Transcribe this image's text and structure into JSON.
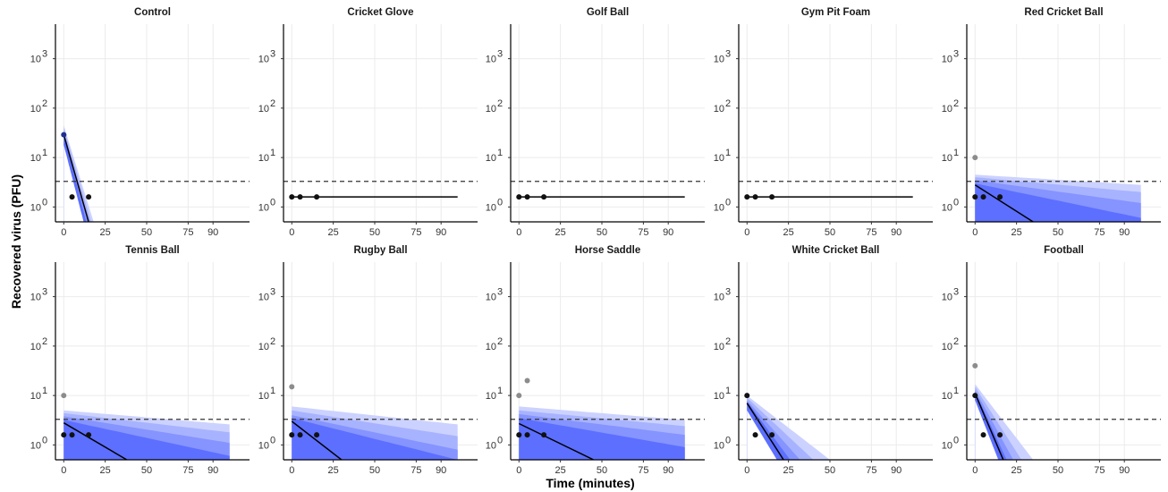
{
  "chart_data": {
    "type": "scatter",
    "layout": "facet-grid 2x5",
    "xlabel": "Time (minutes)",
    "ylabel": "Recovered virus (PFU)",
    "x_ticks": [
      0,
      25,
      50,
      75,
      90
    ],
    "y_ticks": [
      {
        "value": 1,
        "base": "10",
        "exp": "0"
      },
      {
        "value": 10,
        "base": "10",
        "exp": "1"
      },
      {
        "value": 100,
        "base": "10",
        "exp": "2"
      },
      {
        "value": 1000,
        "base": "10",
        "exp": "3"
      }
    ],
    "xlim": [
      -5,
      112
    ],
    "ylim": [
      0.5,
      5000
    ],
    "y_scale": "log10",
    "detection_limit": 3.3,
    "colors": {
      "band_outer": "#ccd2ff",
      "band_mid": "#a8b3ff",
      "band_inner": "#8594ff",
      "band_core": "#5c6fff",
      "point_main": "#111111",
      "point_secondary": "#8c8c8c",
      "point_control": "#1f2f8f"
    },
    "panels": [
      {
        "title": "Control",
        "curve_x_end": 15,
        "fit": [
          [
            0,
            29
          ],
          [
            15,
            0.5
          ]
        ],
        "bands": [
          [
            [
              0,
              45
            ],
            [
              18,
              0.5
            ]
          ],
          [
            [
              0,
              40
            ],
            [
              16.5,
              0.5
            ]
          ],
          [
            [
              0,
              34
            ],
            [
              15,
              0.5
            ]
          ],
          [
            [
              0,
              31
            ],
            [
              13.5,
              0.5
            ]
          ]
        ],
        "bands_lower": [
          [
            0,
            18
          ],
          [
            12,
            0.5
          ]
        ],
        "points": [
          {
            "x": 0,
            "y": 29,
            "kind": "control"
          },
          {
            "x": 5,
            "y": 1.6,
            "kind": "main"
          },
          {
            "x": 15,
            "y": 1.6,
            "kind": "main"
          }
        ]
      },
      {
        "title": "Cricket Glove",
        "curve_x_end": 100,
        "fit": [
          [
            0,
            1.6
          ],
          [
            100,
            1.6
          ]
        ],
        "bands": [],
        "points": [
          {
            "x": 0,
            "y": 1.6,
            "kind": "main"
          },
          {
            "x": 5,
            "y": 1.6,
            "kind": "main"
          },
          {
            "x": 15,
            "y": 1.6,
            "kind": "main"
          }
        ]
      },
      {
        "title": "Golf Ball",
        "curve_x_end": 100,
        "fit": [
          [
            0,
            1.6
          ],
          [
            100,
            1.6
          ]
        ],
        "bands": [],
        "points": [
          {
            "x": 0,
            "y": 1.6,
            "kind": "main"
          },
          {
            "x": 5,
            "y": 1.6,
            "kind": "main"
          },
          {
            "x": 15,
            "y": 1.6,
            "kind": "main"
          }
        ]
      },
      {
        "title": "Gym Pit Foam",
        "curve_x_end": 100,
        "fit": [
          [
            0,
            1.6
          ],
          [
            100,
            1.6
          ]
        ],
        "bands": [],
        "points": [
          {
            "x": 0,
            "y": 1.6,
            "kind": "main"
          },
          {
            "x": 5,
            "y": 1.6,
            "kind": "main"
          },
          {
            "x": 15,
            "y": 1.6,
            "kind": "main"
          }
        ]
      },
      {
        "title": "Red Cricket Ball",
        "curve_x_end": 100,
        "fit": [
          [
            0,
            2.8
          ],
          [
            35,
            0.5
          ]
        ],
        "bands": [
          [
            [
              0,
              4.5
            ],
            [
              100,
              2.8
            ]
          ],
          [
            [
              0,
              4.0
            ],
            [
              100,
              2.0
            ]
          ],
          [
            [
              0,
              3.5
            ],
            [
              100,
              1.2
            ]
          ],
          [
            [
              0,
              3.0
            ],
            [
              100,
              0.6
            ]
          ]
        ],
        "points": [
          {
            "x": 0,
            "y": 10,
            "kind": "secondary"
          },
          {
            "x": 0,
            "y": 1.6,
            "kind": "main"
          },
          {
            "x": 5,
            "y": 1.6,
            "kind": "main"
          },
          {
            "x": 15,
            "y": 1.6,
            "kind": "main"
          }
        ]
      },
      {
        "title": "Tennis Ball",
        "curve_x_end": 100,
        "fit": [
          [
            0,
            2.8
          ],
          [
            38,
            0.5
          ]
        ],
        "bands": [
          [
            [
              0,
              5.0
            ],
            [
              100,
              2.6
            ]
          ],
          [
            [
              0,
              4.4
            ],
            [
              100,
              1.8
            ]
          ],
          [
            [
              0,
              3.8
            ],
            [
              100,
              1.1
            ]
          ],
          [
            [
              0,
              3.2
            ],
            [
              100,
              0.6
            ]
          ]
        ],
        "points": [
          {
            "x": 0,
            "y": 10,
            "kind": "secondary"
          },
          {
            "x": 0,
            "y": 1.6,
            "kind": "main"
          },
          {
            "x": 5,
            "y": 1.6,
            "kind": "main"
          },
          {
            "x": 15,
            "y": 1.6,
            "kind": "main"
          }
        ]
      },
      {
        "title": "Rugby Ball",
        "curve_x_end": 100,
        "fit": [
          [
            0,
            3.0
          ],
          [
            30,
            0.5
          ]
        ],
        "bands": [
          [
            [
              0,
              6.0
            ],
            [
              100,
              2.6
            ]
          ],
          [
            [
              0,
              5.0
            ],
            [
              100,
              1.5
            ]
          ],
          [
            [
              0,
              4.0
            ],
            [
              100,
              0.8
            ]
          ],
          [
            [
              0,
              3.5
            ],
            [
              100,
              0.5
            ]
          ]
        ],
        "points": [
          {
            "x": 0,
            "y": 15,
            "kind": "secondary"
          },
          {
            "x": 0,
            "y": 1.6,
            "kind": "main"
          },
          {
            "x": 5,
            "y": 1.6,
            "kind": "main"
          },
          {
            "x": 15,
            "y": 1.6,
            "kind": "main"
          }
        ]
      },
      {
        "title": "Horse Saddle",
        "curve_x_end": 100,
        "fit": [
          [
            0,
            2.7
          ],
          [
            45,
            0.5
          ]
        ],
        "bands": [
          [
            [
              0,
              6.0
            ],
            [
              100,
              3.2
            ]
          ],
          [
            [
              0,
              5.0
            ],
            [
              100,
              2.4
            ]
          ],
          [
            [
              0,
              4.2
            ],
            [
              100,
              1.6
            ]
          ],
          [
            [
              0,
              3.5
            ],
            [
              100,
              0.9
            ]
          ]
        ],
        "points": [
          {
            "x": 0,
            "y": 10,
            "kind": "secondary"
          },
          {
            "x": 5,
            "y": 20,
            "kind": "secondary"
          },
          {
            "x": 0,
            "y": 1.6,
            "kind": "main"
          },
          {
            "x": 5,
            "y": 1.6,
            "kind": "main"
          },
          {
            "x": 15,
            "y": 1.6,
            "kind": "main"
          }
        ]
      },
      {
        "title": "White Cricket Ball",
        "curve_x_end": 50,
        "fit": [
          [
            0,
            7.0
          ],
          [
            22,
            0.5
          ]
        ],
        "bands": [
          [
            [
              0,
              10
            ],
            [
              50,
              0.5
            ]
          ],
          [
            [
              0,
              9
            ],
            [
              40,
              0.5
            ]
          ],
          [
            [
              0,
              8
            ],
            [
              32,
              0.5
            ]
          ],
          [
            [
              0,
              7.5
            ],
            [
              26,
              0.5
            ]
          ]
        ],
        "bands_lower": [
          [
            0,
            5.0
          ],
          [
            18,
            0.5
          ]
        ],
        "points": [
          {
            "x": 0,
            "y": 10,
            "kind": "main"
          },
          {
            "x": 5,
            "y": 1.6,
            "kind": "main"
          },
          {
            "x": 15,
            "y": 1.6,
            "kind": "main"
          }
        ]
      },
      {
        "title": "Football",
        "curve_x_end": 35,
        "fit": [
          [
            0,
            11
          ],
          [
            17,
            0.5
          ]
        ],
        "bands": [
          [
            [
              0,
              17
            ],
            [
              35,
              0.5
            ]
          ],
          [
            [
              0,
              15
            ],
            [
              28,
              0.5
            ]
          ],
          [
            [
              0,
              13
            ],
            [
              23,
              0.5
            ]
          ],
          [
            [
              0,
              12
            ],
            [
              19,
              0.5
            ]
          ]
        ],
        "bands_lower": [
          [
            0,
            8.0
          ],
          [
            14,
            0.5
          ]
        ],
        "points": [
          {
            "x": 0,
            "y": 40,
            "kind": "secondary"
          },
          {
            "x": 0,
            "y": 10,
            "kind": "main"
          },
          {
            "x": 5,
            "y": 1.6,
            "kind": "main"
          },
          {
            "x": 15,
            "y": 1.6,
            "kind": "main"
          }
        ]
      }
    ]
  }
}
